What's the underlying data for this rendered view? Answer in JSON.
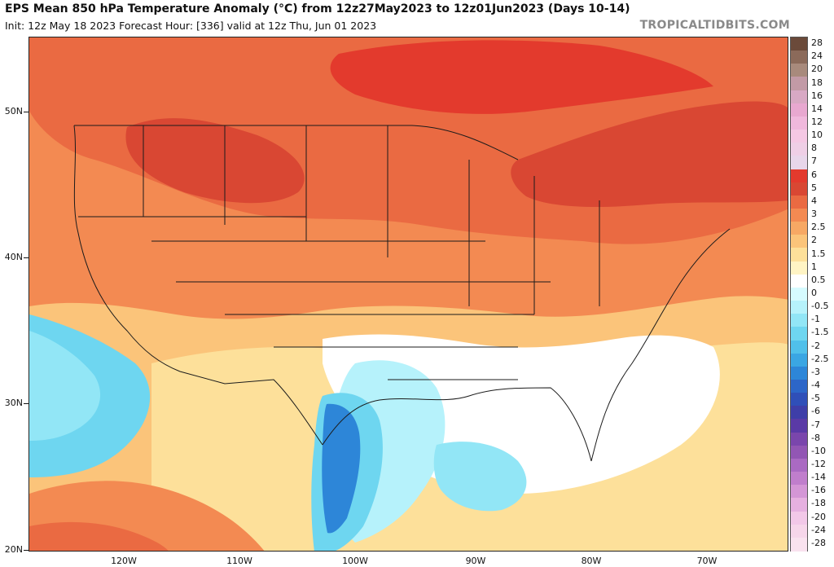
{
  "header": {
    "title": "EPS Mean 850 hPa Temperature Anomaly (°C) from 12z27May2023 to 12z01Jun2023 (Days 10-14)",
    "subtitle": "Init: 12z May 18 2023   Forecast Hour: [336]   valid at 12z Thu, Jun 01 2023",
    "brand": "TROPICALTIDBITS.COM"
  },
  "map": {
    "lat_labels": [
      "50N",
      "40N",
      "30N",
      "20N"
    ],
    "lon_labels": [
      "120W",
      "110W",
      "100W",
      "90W",
      "80W",
      "70W"
    ]
  },
  "colorbar": {
    "labels": [
      "28",
      "24",
      "20",
      "18",
      "16",
      "14",
      "12",
      "10",
      "8",
      "7",
      "6",
      "5",
      "4",
      "3",
      "2.5",
      "2",
      "1.5",
      "1",
      "0.5",
      "0",
      "-0.5",
      "-1",
      "-1.5",
      "-2",
      "-2.5",
      "-3",
      "-4",
      "-5",
      "-6",
      "-7",
      "-8",
      "-10",
      "-12",
      "-14",
      "-16",
      "-18",
      "-20",
      "-24",
      "-28"
    ],
    "colors": [
      "#6b4a3a",
      "#8b6a5a",
      "#a88a7c",
      "#c29aa6",
      "#d8a9c4",
      "#e8a8d0",
      "#f0b8dc",
      "#f5c8e4",
      "#efcfe6",
      "#e8d6ea",
      "#e33a2d",
      "#d94733",
      "#ea6a42",
      "#f38a52",
      "#f7a864",
      "#fbc47a",
      "#fde09a",
      "#fff4c4",
      "#ffffff",
      "#d6fbff",
      "#b6f2fb",
      "#92e6f6",
      "#6ed6f0",
      "#50c0ea",
      "#3aa6e3",
      "#2d86d8",
      "#2c66c8",
      "#2f4fb8",
      "#3e3ea8",
      "#5a3aa6",
      "#7a46ac",
      "#9256b4",
      "#aa6ac2",
      "#c07ecc",
      "#d496d6",
      "#e6b0e0",
      "#f2c8e8",
      "#f6d6ea",
      "#f9e2ef"
    ]
  }
}
